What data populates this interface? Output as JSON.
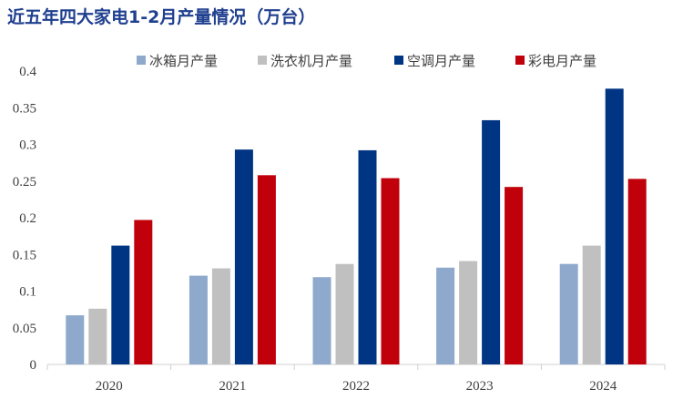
{
  "title": "近五年四大家电1-2月产量情况（万台）",
  "chart_data": {
    "type": "bar",
    "title": "近五年四大家电1-2月产量情况（万台）",
    "categories": [
      "2020",
      "2021",
      "2022",
      "2023",
      "2024"
    ],
    "ylim": [
      0,
      0.4
    ],
    "yticks": [
      0,
      0.05,
      0.1,
      0.15,
      0.2,
      0.25,
      0.3,
      0.35,
      0.4
    ],
    "ytick_labels": [
      "0",
      "0.05",
      "0.1",
      "0.15",
      "0.2",
      "0.25",
      "0.3",
      "0.35",
      "0.4"
    ],
    "grid": false,
    "legend_position": "top",
    "series": [
      {
        "name": "冰箱月产量",
        "color": "#8ea9cc",
        "values": [
          0.067,
          0.121,
          0.119,
          0.132,
          0.137
        ]
      },
      {
        "name": "洗衣机月产量",
        "color": "#c0c0c0",
        "values": [
          0.076,
          0.131,
          0.137,
          0.141,
          0.162
        ]
      },
      {
        "name": "空调月产量",
        "color": "#003584",
        "values": [
          0.162,
          0.293,
          0.292,
          0.333,
          0.376
        ]
      },
      {
        "name": "彩电月产量",
        "color": "#c0000a",
        "values": [
          0.197,
          0.258,
          0.254,
          0.242,
          0.253
        ]
      }
    ]
  }
}
